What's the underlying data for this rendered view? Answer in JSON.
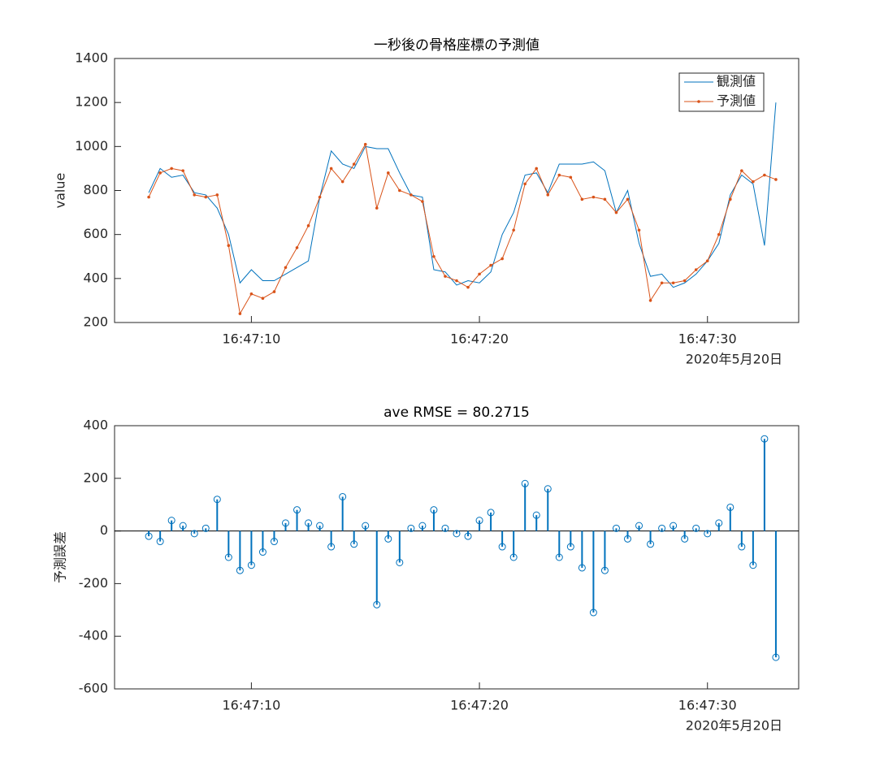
{
  "chart_data": [
    {
      "type": "line",
      "title": "一秒後の骨格座標の予測値",
      "y_label": "value",
      "x_date_label": "2020年5月20日",
      "x": [
        "16:47:05.5",
        "16:47:06.0",
        "16:47:06.5",
        "16:47:07.0",
        "16:47:07.5",
        "16:47:08.0",
        "16:47:08.5",
        "16:47:09.0",
        "16:47:09.5",
        "16:47:10.0",
        "16:47:10.5",
        "16:47:11.0",
        "16:47:11.5",
        "16:47:12.0",
        "16:47:12.5",
        "16:47:13.0",
        "16:47:13.5",
        "16:47:14.0",
        "16:47:14.5",
        "16:47:15.0",
        "16:47:15.5",
        "16:47:16.0",
        "16:47:16.5",
        "16:47:17.0",
        "16:47:17.5",
        "16:47:18.0",
        "16:47:18.5",
        "16:47:19.0",
        "16:47:19.5",
        "16:47:20.0",
        "16:47:20.5",
        "16:47:21.0",
        "16:47:21.5",
        "16:47:22.0",
        "16:47:22.5",
        "16:47:23.0",
        "16:47:23.5",
        "16:47:24.0",
        "16:47:24.5",
        "16:47:25.0",
        "16:47:25.5",
        "16:47:26.0",
        "16:47:26.5",
        "16:47:27.0",
        "16:47:27.5",
        "16:47:28.0",
        "16:47:28.5",
        "16:47:29.0",
        "16:47:29.5",
        "16:47:30.0",
        "16:47:30.5",
        "16:47:31.0",
        "16:47:31.5",
        "16:47:32.0",
        "16:47:32.5",
        "16:47:33.0"
      ],
      "series": [
        {
          "name": "観測値",
          "color": "#0072BD",
          "marker": false,
          "values": [
            790,
            900,
            860,
            870,
            790,
            780,
            720,
            600,
            380,
            440,
            390,
            390,
            420,
            450,
            480,
            770,
            980,
            920,
            900,
            1000,
            990,
            990,
            880,
            780,
            770,
            440,
            430,
            370,
            390,
            380,
            430,
            600,
            700,
            870,
            880,
            790,
            920,
            920,
            920,
            930,
            890,
            700,
            800,
            560,
            410,
            420,
            360,
            380,
            420,
            480,
            560,
            780,
            870,
            830,
            550,
            1200
          ]
        },
        {
          "name": "予測値",
          "color": "#D95319",
          "marker": true,
          "values": [
            770,
            880,
            900,
            890,
            780,
            770,
            780,
            550,
            240,
            330,
            310,
            340,
            450,
            540,
            640,
            770,
            900,
            840,
            920,
            1010,
            720,
            880,
            800,
            780,
            750,
            500,
            410,
            390,
            360,
            420,
            460,
            490,
            620,
            830,
            900,
            780,
            870,
            860,
            760,
            770,
            760,
            700,
            760,
            620,
            300,
            380,
            380,
            390,
            440,
            480,
            600,
            760,
            890,
            840,
            870,
            850
          ]
        }
      ],
      "xlim": [
        "16:47:04",
        "16:47:34"
      ],
      "xticks": [
        "16:47:10",
        "16:47:20",
        "16:47:30"
      ],
      "ylim": [
        200,
        1400
      ],
      "yticks": [
        200,
        400,
        600,
        800,
        1000,
        1200,
        1400
      ],
      "legend": "top-right"
    },
    {
      "type": "stem",
      "title": "ave RMSE = 80.2715",
      "y_label": "予測誤差",
      "x_date_label": "2020年5月20日",
      "color": "#0072BD",
      "x": [
        "16:47:05.5",
        "16:47:06.0",
        "16:47:06.5",
        "16:47:07.0",
        "16:47:07.5",
        "16:47:08.0",
        "16:47:08.5",
        "16:47:09.0",
        "16:47:09.5",
        "16:47:10.0",
        "16:47:10.5",
        "16:47:11.0",
        "16:47:11.5",
        "16:47:12.0",
        "16:47:12.5",
        "16:47:13.0",
        "16:47:13.5",
        "16:47:14.0",
        "16:47:14.5",
        "16:47:15.0",
        "16:47:15.5",
        "16:47:16.0",
        "16:47:16.5",
        "16:47:17.0",
        "16:47:17.5",
        "16:47:18.0",
        "16:47:18.5",
        "16:47:19.0",
        "16:47:19.5",
        "16:47:20.0",
        "16:47:20.5",
        "16:47:21.0",
        "16:47:21.5",
        "16:47:22.0",
        "16:47:22.5",
        "16:47:23.0",
        "16:47:23.5",
        "16:47:24.0",
        "16:47:24.5",
        "16:47:25.0",
        "16:47:25.5",
        "16:47:26.0",
        "16:47:26.5",
        "16:47:27.0",
        "16:47:27.5",
        "16:47:28.0",
        "16:47:28.5",
        "16:47:29.0",
        "16:47:29.5",
        "16:47:30.0",
        "16:47:30.5",
        "16:47:31.0",
        "16:47:31.5",
        "16:47:32.0",
        "16:47:32.5",
        "16:47:33.0"
      ],
      "values": [
        -20,
        -40,
        40,
        20,
        -10,
        10,
        120,
        -100,
        -150,
        -130,
        -80,
        -40,
        30,
        80,
        30,
        20,
        -60,
        130,
        -50,
        20,
        -280,
        -30,
        -120,
        10,
        20,
        80,
        10,
        -10,
        -20,
        40,
        70,
        -60,
        -100,
        180,
        60,
        160,
        -100,
        -60,
        -140,
        -310,
        -150,
        10,
        -30,
        20,
        -50,
        10,
        20,
        -30,
        10,
        -10,
        30,
        90,
        -60,
        -130,
        350,
        -480
      ],
      "xlim": [
        "16:47:04",
        "16:47:34"
      ],
      "xticks": [
        "16:47:10",
        "16:47:20",
        "16:47:30"
      ],
      "ylim": [
        -600,
        400
      ],
      "yticks": [
        -600,
        -400,
        -200,
        0,
        200,
        400
      ]
    }
  ]
}
